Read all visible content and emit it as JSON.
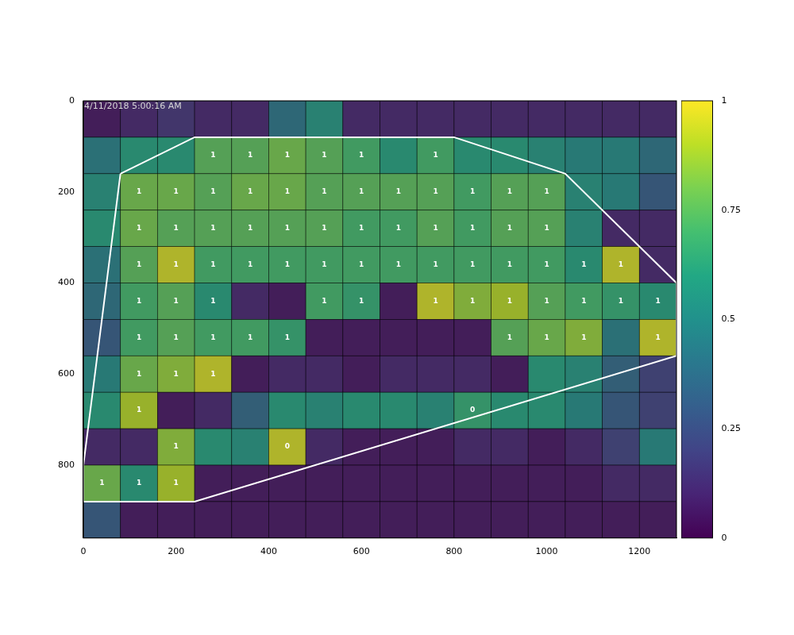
{
  "chart_data": {
    "type": "heatmap",
    "annotation": "4/11/2018 5:00:16 AM",
    "xlim": [
      0,
      1280
    ],
    "xticks": [
      0,
      200,
      400,
      600,
      800,
      1000,
      1200
    ],
    "ylim": [
      960,
      0
    ],
    "yticks": [
      0,
      200,
      400,
      600,
      800
    ],
    "cells": [
      [
        0.05,
        0.1,
        0.15,
        0.1,
        0.1,
        0.4,
        0.55,
        0.1,
        0.1,
        0.1,
        0.1,
        0.1,
        0.1,
        0.1,
        0.1,
        0.1
      ],
      [
        0.45,
        0.6,
        0.6,
        0.75,
        0.75,
        0.8,
        0.75,
        0.7,
        0.6,
        0.7,
        0.6,
        0.6,
        0.55,
        0.5,
        0.5,
        0.4
      ],
      [
        0.55,
        0.8,
        0.8,
        0.75,
        0.8,
        0.8,
        0.75,
        0.75,
        0.75,
        0.75,
        0.7,
        0.75,
        0.75,
        0.55,
        0.5,
        0.3
      ],
      [
        0.6,
        0.8,
        0.75,
        0.75,
        0.75,
        0.75,
        0.75,
        0.7,
        0.7,
        0.75,
        0.7,
        0.75,
        0.75,
        0.55,
        0.1,
        0.1
      ],
      [
        0.45,
        0.75,
        0.95,
        0.7,
        0.7,
        0.7,
        0.7,
        0.7,
        0.7,
        0.7,
        0.7,
        0.7,
        0.7,
        0.6,
        0.95,
        0.1
      ],
      [
        0.4,
        0.7,
        0.75,
        0.6,
        0.1,
        0.05,
        0.7,
        0.65,
        0.05,
        0.95,
        0.85,
        0.9,
        0.75,
        0.7,
        0.65,
        0.6
      ],
      [
        0.3,
        0.7,
        0.75,
        0.7,
        0.7,
        0.65,
        0.05,
        0.05,
        0.05,
        0.05,
        0.05,
        0.75,
        0.8,
        0.85,
        0.45,
        0.95
      ],
      [
        0.5,
        0.8,
        0.85,
        0.95,
        0.05,
        0.1,
        0.1,
        0.05,
        0.1,
        0.1,
        0.1,
        0.05,
        0.6,
        0.55,
        0.35,
        0.2
      ],
      [
        0.6,
        0.9,
        0.05,
        0.1,
        0.35,
        0.6,
        0.55,
        0.6,
        0.6,
        0.55,
        0.65,
        0.6,
        0.6,
        0.5,
        0.3,
        0.2
      ],
      [
        0.1,
        0.1,
        0.85,
        0.6,
        0.55,
        0.95,
        0.1,
        0.05,
        0.05,
        0.05,
        0.1,
        0.1,
        0.05,
        0.1,
        0.2,
        0.5
      ],
      [
        0.8,
        0.6,
        0.9,
        0.05,
        0.05,
        0.05,
        0.05,
        0.05,
        0.05,
        0.05,
        0.05,
        0.05,
        0.05,
        0.05,
        0.1,
        0.1
      ],
      [
        0.3,
        0.05,
        0.05,
        0.05,
        0.05,
        0.05,
        0.05,
        0.05,
        0.05,
        0.05,
        0.05,
        0.05,
        0.05,
        0.05,
        0.05,
        0.05
      ]
    ],
    "cell_labels": [
      [
        null,
        null,
        null,
        null,
        null,
        null,
        null,
        null,
        null,
        null,
        null,
        null,
        null,
        null,
        null,
        null
      ],
      [
        null,
        null,
        null,
        1,
        1,
        1,
        1,
        1,
        null,
        1,
        null,
        null,
        null,
        null,
        null,
        null
      ],
      [
        null,
        1,
        1,
        1,
        1,
        1,
        1,
        1,
        1,
        1,
        1,
        1,
        1,
        null,
        null,
        null
      ],
      [
        null,
        1,
        1,
        1,
        1,
        1,
        1,
        1,
        1,
        1,
        1,
        1,
        1,
        null,
        null,
        null
      ],
      [
        null,
        1,
        1,
        1,
        1,
        1,
        1,
        1,
        1,
        1,
        1,
        1,
        1,
        1,
        1,
        null
      ],
      [
        null,
        1,
        1,
        1,
        null,
        null,
        1,
        1,
        null,
        1,
        1,
        1,
        1,
        1,
        1,
        1
      ],
      [
        null,
        1,
        1,
        1,
        1,
        1,
        null,
        null,
        null,
        null,
        null,
        1,
        1,
        1,
        null,
        1
      ],
      [
        null,
        1,
        1,
        1,
        null,
        null,
        null,
        null,
        null,
        null,
        null,
        null,
        null,
        null,
        null,
        null
      ],
      [
        null,
        1,
        null,
        null,
        null,
        null,
        null,
        null,
        null,
        null,
        0,
        null,
        null,
        null,
        null,
        null
      ],
      [
        null,
        null,
        1,
        null,
        null,
        0,
        null,
        null,
        null,
        null,
        null,
        null,
        null,
        null,
        null,
        null
      ],
      [
        1,
        1,
        1,
        null,
        null,
        null,
        null,
        null,
        null,
        null,
        null,
        null,
        null,
        null,
        null,
        null
      ],
      [
        null,
        null,
        null,
        null,
        null,
        null,
        null,
        null,
        null,
        null,
        null,
        null,
        null,
        null,
        null,
        null
      ]
    ],
    "colorbar": {
      "range": [
        0,
        1
      ],
      "ticks": [
        0,
        0.25,
        0.5,
        0.75,
        1
      ]
    },
    "region": {
      "x": [
        80,
        240,
        800,
        1040,
        1280,
        1280,
        240,
        0,
        0,
        80
      ],
      "y": [
        160,
        80,
        80,
        160,
        400,
        560,
        880,
        880,
        800,
        160
      ]
    }
  }
}
